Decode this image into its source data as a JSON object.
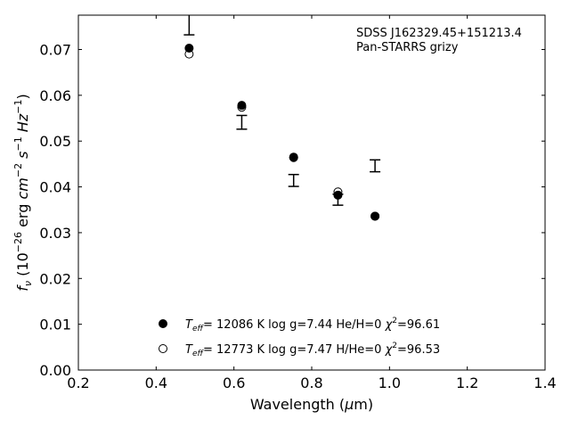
{
  "chart_data": {
    "type": "scatter",
    "annotation": [
      "SDSS J162329.45+151213.4",
      "Pan-STARRS grizy"
    ],
    "xlabel_prefix": "Wavelength (",
    "xlabel_mu": "μ",
    "xlabel_suffix": "m)",
    "ylabel": {
      "f": "f",
      "nu": "ν",
      "open": " (10",
      "exp1": "−26",
      "erg": " erg ",
      "cm": "cm",
      "exp2": "−2",
      "s": " s",
      "exp3": "−1",
      "hz": " Hz",
      "exp4": "−1",
      "close": ")"
    },
    "xlim": [
      0.2,
      1.4
    ],
    "ylim": [
      0.0,
      0.0775
    ],
    "xticks": [
      "0.2",
      "0.4",
      "0.6",
      "0.8",
      "1.0",
      "1.2",
      "1.4"
    ],
    "yticks": [
      "0.00",
      "0.01",
      "0.02",
      "0.03",
      "0.04",
      "0.05",
      "0.06",
      "0.07"
    ],
    "observed": [
      {
        "x": 0.4848,
        "y": 0.0757,
        "err": 0.0025
      },
      {
        "x": 0.6201,
        "y": 0.0541,
        "err": 0.0015
      },
      {
        "x": 0.7535,
        "y": 0.0414,
        "err": 0.0013
      },
      {
        "x": 0.8674,
        "y": 0.0372,
        "err": 0.0012
      },
      {
        "x": 0.9628,
        "y": 0.0446,
        "err": 0.0013
      }
    ],
    "series": [
      {
        "style": "filled",
        "legend": {
          "T": "T",
          "eff": "eff",
          "rest": "= 12086 K  log g=7.44  He/H=0  ",
          "chi": "χ",
          "two": "2",
          "chival": "=96.61"
        },
        "x": [
          0.4848,
          0.6201,
          0.7535,
          0.8674,
          0.9628
        ],
        "y": [
          0.0703,
          0.0578,
          0.0465,
          0.0382,
          0.0336
        ]
      },
      {
        "style": "open",
        "legend": {
          "T": "T",
          "eff": "eff",
          "rest": "= 12773 K  log g=7.47  H/He=0  ",
          "chi": "χ",
          "two": "2",
          "chival": "=96.53"
        },
        "x": [
          0.4848,
          0.6201,
          0.7535,
          0.8674,
          0.9628
        ],
        "y": [
          0.069,
          0.0574,
          0.0464,
          0.0389,
          0.0336
        ]
      }
    ]
  }
}
